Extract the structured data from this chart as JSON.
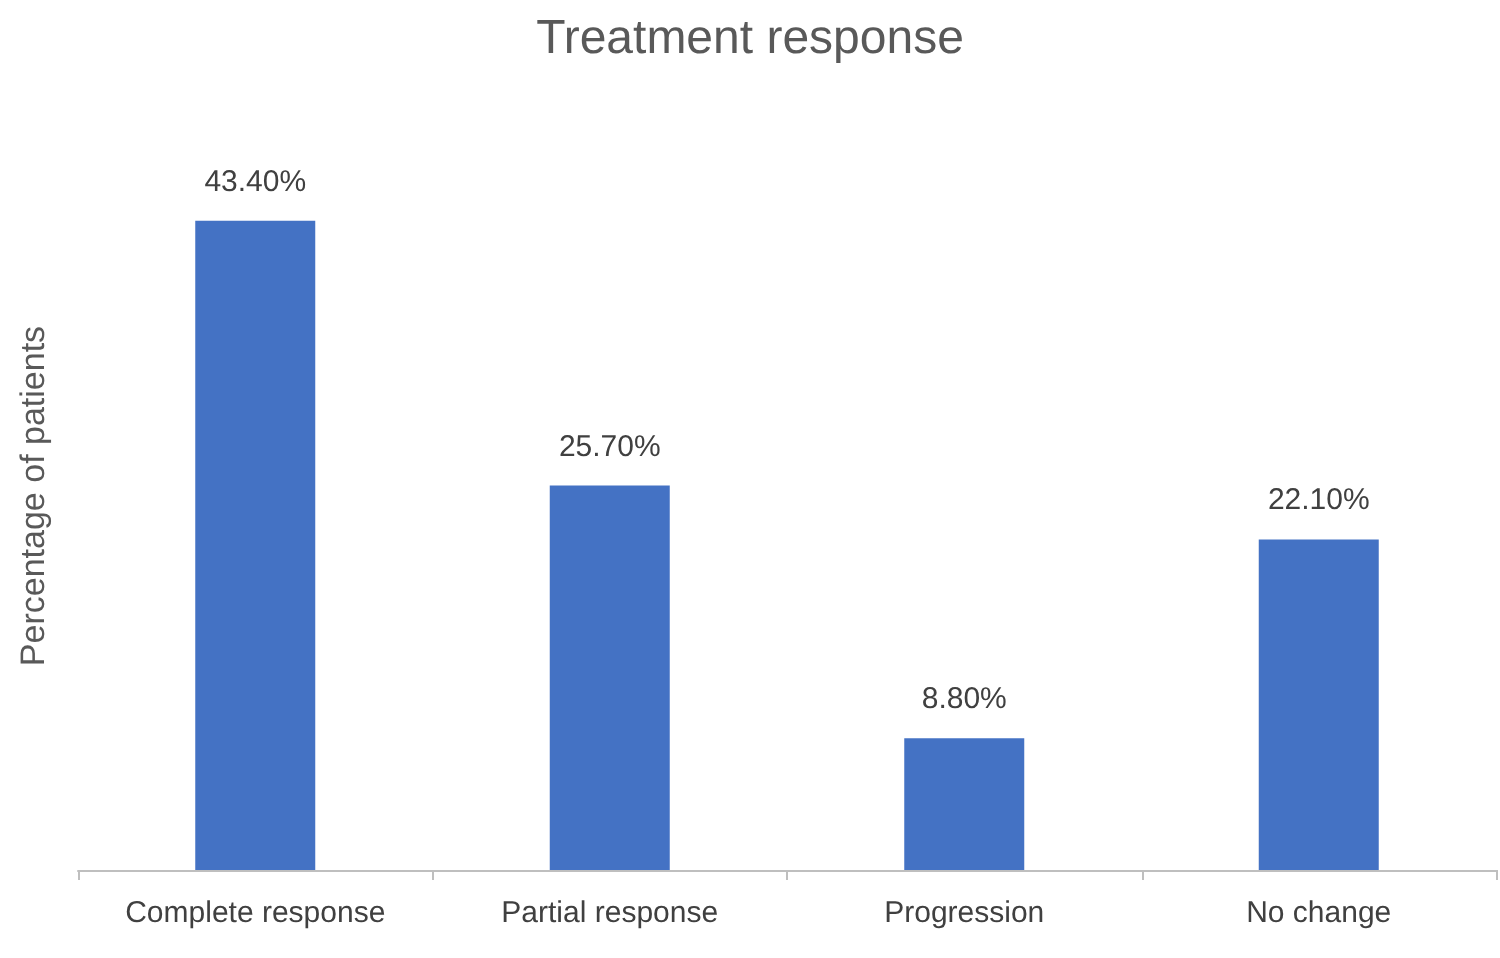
{
  "chart_data": {
    "type": "bar",
    "title": "Treatment response",
    "ylabel": "Percentage of patients",
    "categories": [
      "Complete response",
      "Partial response",
      "Progression",
      "No change"
    ],
    "values": [
      43.4,
      25.7,
      8.8,
      22.1
    ],
    "value_labels": [
      "43.40%",
      "25.70%",
      "8.80%",
      "22.10%"
    ],
    "color": "#4472c4"
  }
}
